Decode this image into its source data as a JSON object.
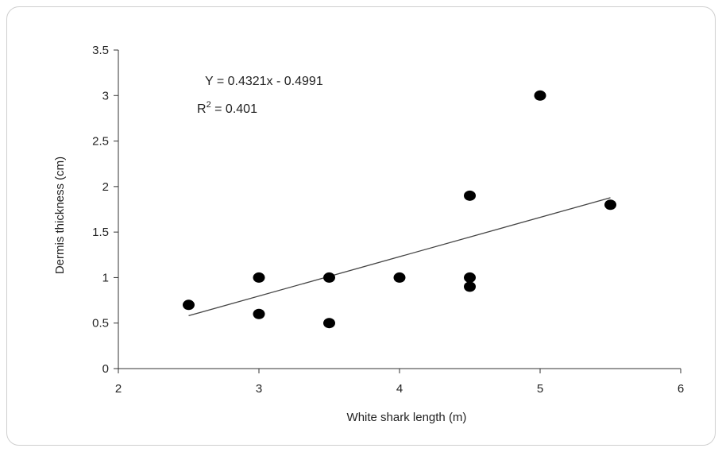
{
  "chart_data": {
    "type": "scatter",
    "xlabel": "White shark length (m)",
    "ylabel": "Dermis thickness (cm)",
    "xlim": [
      2,
      6
    ],
    "ylim": [
      0,
      3.5
    ],
    "x_ticks": [
      "2",
      "3",
      "4",
      "5",
      "6"
    ],
    "y_ticks": [
      "0",
      "0.5",
      "1",
      "1.5",
      "2",
      "2.5",
      "3",
      "3.5"
    ],
    "points": [
      {
        "x": 2.5,
        "y": 0.7
      },
      {
        "x": 3.0,
        "y": 1.0
      },
      {
        "x": 3.0,
        "y": 0.6
      },
      {
        "x": 3.5,
        "y": 1.0
      },
      {
        "x": 3.5,
        "y": 0.5
      },
      {
        "x": 4.0,
        "y": 1.0
      },
      {
        "x": 4.5,
        "y": 1.9
      },
      {
        "x": 4.5,
        "y": 1.0
      },
      {
        "x": 4.5,
        "y": 0.9
      },
      {
        "x": 5.0,
        "y": 3.0
      },
      {
        "x": 5.5,
        "y": 1.8
      }
    ],
    "trendline": {
      "slope": 0.4321,
      "intercept": -0.4991,
      "x_range": [
        2.5,
        5.5
      ]
    },
    "annotations": {
      "equation": "Y = 0.4321x - 0.4991",
      "r2_prefix": "R",
      "r2_exp": "2",
      "r2_value": " = 0.401"
    },
    "grid": false,
    "legend": "none",
    "colors": {
      "marker": "#000000",
      "line": "#444444",
      "axis": "#333333"
    }
  }
}
